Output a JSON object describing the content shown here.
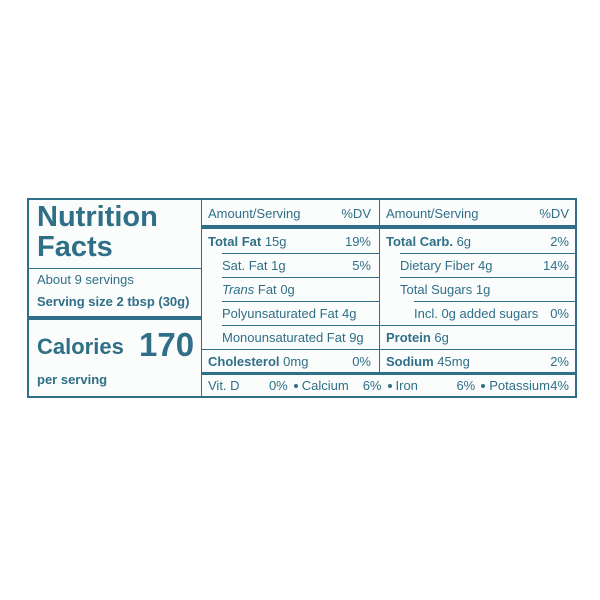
{
  "header": {
    "title_line1": "Nutrition",
    "title_line2": "Facts",
    "servings": "About 9 servings",
    "serving_size": "Serving size 2 tbsp (30g)",
    "calories_label": "Calories",
    "calories": "170",
    "per_serving": "per serving"
  },
  "left_table": {
    "header": [
      "Amount/Serving",
      "%DV"
    ],
    "rows": [
      {
        "name": "Total Fat",
        "amount": "15g",
        "dv": "19%",
        "bold": true,
        "indent": 0
      },
      {
        "name": "Sat. Fat",
        "amount": "1g",
        "dv": "5%",
        "bold": false,
        "indent": 1
      },
      {
        "name_italic": "Trans",
        "name": "Fat",
        "amount": "0g",
        "bold": false,
        "indent": 1
      },
      {
        "name": "Polyunsaturated Fat",
        "amount": "4g",
        "bold": false,
        "indent": 1
      },
      {
        "name": "Monounsaturated Fat",
        "amount": "9g",
        "bold": false,
        "indent": 1
      },
      {
        "name": "Cholesterol",
        "amount": "0mg",
        "dv": "0%",
        "bold": true,
        "indent": 0
      }
    ]
  },
  "right_table": {
    "header": [
      "Amount/Serving",
      "%DV"
    ],
    "rows": [
      {
        "name": "Total Carb.",
        "amount": "6g",
        "dv": "2%",
        "bold": true,
        "indent": 0
      },
      {
        "name": "Dietary Fiber",
        "amount": "4g",
        "dv": "14%",
        "bold": false,
        "indent": 1
      },
      {
        "name": "Total Sugars",
        "amount": "1g",
        "bold": false,
        "indent": 1
      },
      {
        "name": "Incl. 0g added sugars",
        "dv": "0%",
        "bold": false,
        "indent": 2
      },
      {
        "name": "Protein",
        "amount": "6g",
        "bold": true,
        "indent": 0
      },
      {
        "name": "Sodium",
        "amount": "45mg",
        "dv": "2%",
        "bold": true,
        "indent": 0
      }
    ]
  },
  "footer": {
    "items": [
      {
        "name": "Vit. D",
        "value": "0%"
      },
      {
        "name": "Calcium",
        "value": "6%"
      },
      {
        "name": "Iron",
        "value": "6%"
      },
      {
        "name": "Potassium",
        "value": "4%"
      }
    ]
  }
}
